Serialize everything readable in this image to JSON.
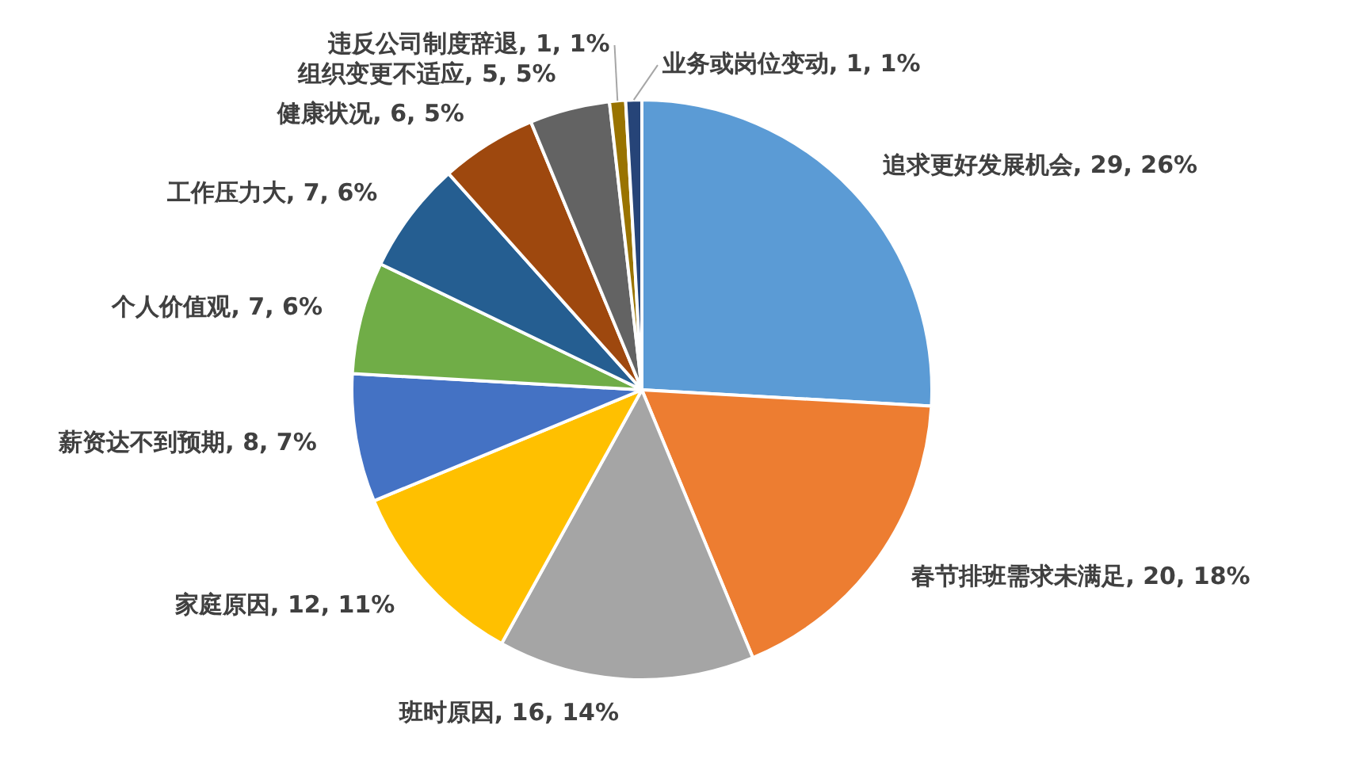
{
  "chart_data": {
    "type": "pie",
    "categories": [
      "追求更好发展机会",
      "春节排班需求未满足",
      "班时原因",
      "家庭原因",
      "薪资达不到预期",
      "个人价值观",
      "工作压力大",
      "健康状况",
      "组织变更不适应",
      "违反公司制度辞退",
      "业务或岗位变动"
    ],
    "values": [
      29,
      20,
      16,
      12,
      8,
      7,
      7,
      6,
      5,
      1,
      1
    ],
    "value_labels": [
      "29, 26%",
      "20, 18%",
      "16, 14%",
      "12, 11%",
      "8, 7%",
      "7, 6%",
      "7, 6%",
      "6, 5%",
      "5, 5%",
      "1, 1%",
      "1, 1%"
    ],
    "colors": [
      "#5b9bd5",
      "#ed7d31",
      "#a5a5a5",
      "#ffc000",
      "#4472c4",
      "#70ad47",
      "#255e91",
      "#9e480e",
      "#636363",
      "#997300",
      "#264478"
    ],
    "legend": false
  }
}
